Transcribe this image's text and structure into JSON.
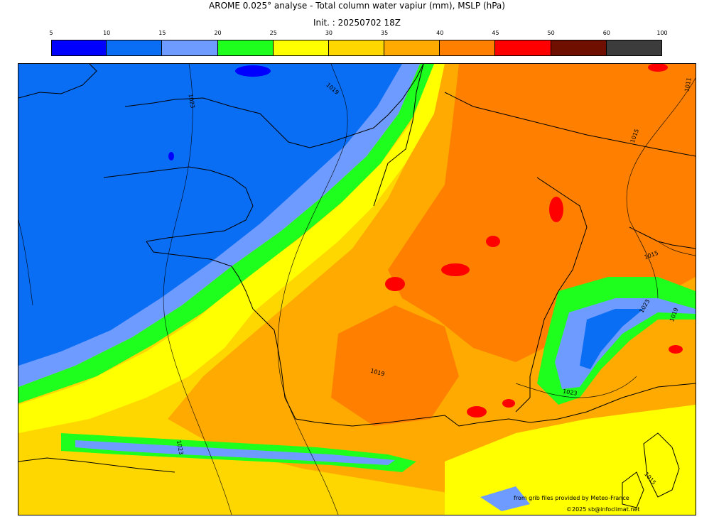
{
  "header": {
    "title": "AROME 0.025° analyse - Total column water vapiur (mm), MSLP (hPa)",
    "init": "Init. : 20250702 18Z"
  },
  "colorbar": {
    "ticks": [
      "5",
      "10",
      "15",
      "20",
      "25",
      "30",
      "35",
      "40",
      "45",
      "50",
      "60",
      "100"
    ],
    "bins": [
      {
        "from": 5,
        "to": 10,
        "color": "#0000ff"
      },
      {
        "from": 10,
        "to": 15,
        "color": "#0a6ef5"
      },
      {
        "from": 15,
        "to": 20,
        "color": "#6e9bff"
      },
      {
        "from": 20,
        "to": 25,
        "color": "#1eff1e"
      },
      {
        "from": 25,
        "to": 30,
        "color": "#ffff00"
      },
      {
        "from": 30,
        "to": 35,
        "color": "#ffd700"
      },
      {
        "from": 35,
        "to": 40,
        "color": "#ffaa00"
      },
      {
        "from": 40,
        "to": 45,
        "color": "#ff8000"
      },
      {
        "from": 45,
        "to": 50,
        "color": "#ff0000"
      },
      {
        "from": 50,
        "to": 60,
        "color": "#6e0f00"
      },
      {
        "from": 60,
        "to": 100,
        "color": "#3c3c3c"
      }
    ]
  },
  "map": {
    "isobar_labels": [
      "1023",
      "1019",
      "1011",
      "1015",
      "1015",
      "1023",
      "1019",
      "1019",
      "1023",
      "1023",
      "1015"
    ]
  },
  "credits": {
    "source": "from grib files provided by Meteo-France",
    "copyright": "©2025 sb@infoclimat.net"
  }
}
